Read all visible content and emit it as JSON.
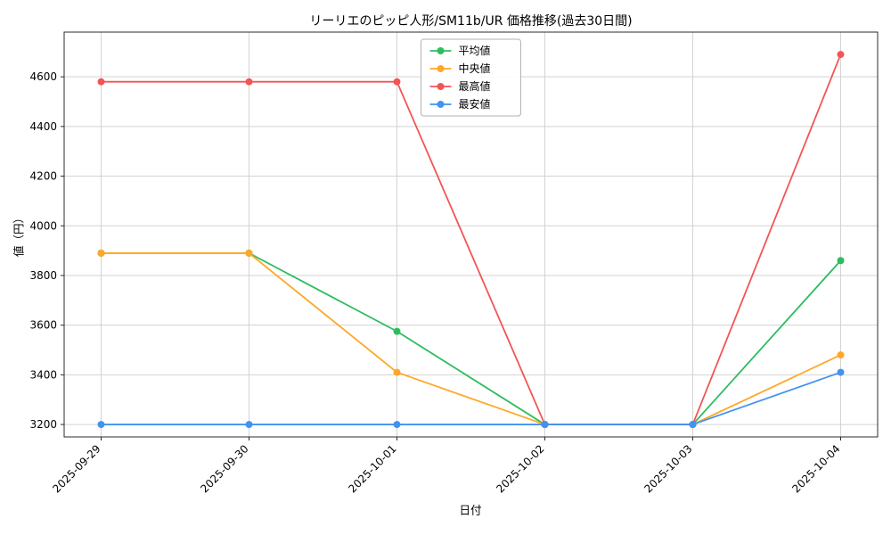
{
  "chart_data": {
    "type": "line",
    "title": "リーリエのピッピ人形/SM11b/UR 価格推移(過去30日間)",
    "xlabel": "日付",
    "ylabel": "値（円）",
    "x": [
      "2025-09-29",
      "2025-09-30",
      "2025-10-01",
      "2025-10-02",
      "2025-10-03",
      "2025-10-04"
    ],
    "series": [
      {
        "name": "平均値",
        "color": "#2dbd5f",
        "values": [
          3890,
          3890,
          3575,
          3200,
          3200,
          3860
        ]
      },
      {
        "name": "中央値",
        "color": "#ffa726",
        "values": [
          3890,
          3890,
          3410,
          3200,
          3200,
          3480
        ]
      },
      {
        "name": "最高値",
        "color": "#f25555",
        "values": [
          4580,
          4580,
          4580,
          3200,
          3200,
          4690
        ]
      },
      {
        "name": "最安値",
        "color": "#4193f1",
        "values": [
          3200,
          3200,
          3200,
          3200,
          3200,
          3410
        ]
      }
    ],
    "ylim": [
      3150,
      4780
    ],
    "yticks": [
      3200,
      3400,
      3600,
      3800,
      4000,
      4200,
      4400,
      4600
    ],
    "grid": true,
    "legend_position": "top-center",
    "colors": {
      "grid": "#d3d3d3",
      "axis_border": "#2b2b2b",
      "legend_border": "#b3b3b3"
    }
  }
}
